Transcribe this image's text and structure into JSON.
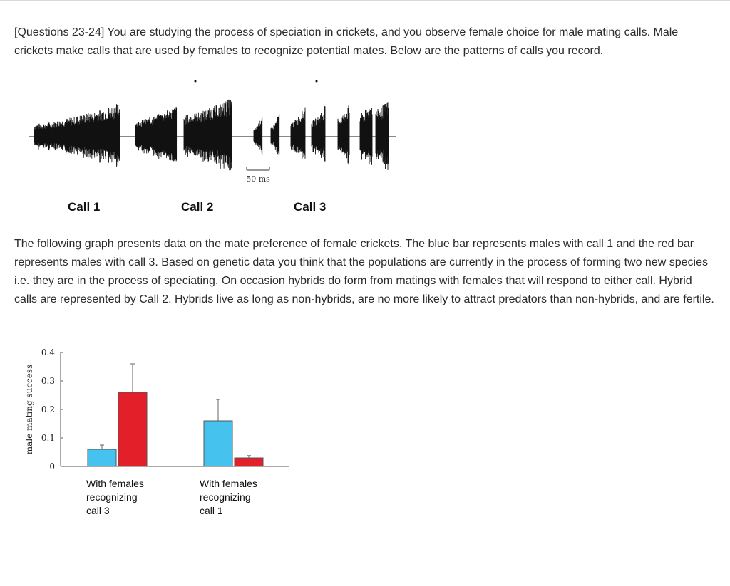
{
  "intro_text": "[Questions 23-24] You are studying the process of speciation in crickets, and you observe female choice for male mating calls. Male crickets make calls that are used by females to recognize potential mates. Below are the patterns of calls you record.",
  "waveform": {
    "scale_label": "50 ms",
    "calls": [
      "Call 1",
      "Call 2",
      "Call 3"
    ]
  },
  "description_text": "The following graph presents data on the mate preference of female crickets. The blue bar represents males with call 1 and the red bar represents males with call 3. Based on genetic data you think that the populations are currently in the process of forming two new species i.e. they are in the process of speciating. On occasion hybrids do form from matings with females that will respond to either call. Hybrid calls are represented by Call 2. Hybrids live as long as non-hybrids, are no more likely to attract predators than non-hybrids, and are fertile.",
  "colors": {
    "blue": "#45c3ee",
    "red": "#e3202a"
  },
  "chart_data": {
    "type": "bar",
    "categories": [
      "With females recognizing call 3",
      "With females recognizing call 1"
    ],
    "category_lines": [
      [
        "With females",
        "recognizing",
        "call 3"
      ],
      [
        "With females",
        "recognizing",
        "call 1"
      ]
    ],
    "series": [
      {
        "color": "blue",
        "values": [
          0.06,
          0.16
        ],
        "errors": [
          0.015,
          0.075
        ]
      },
      {
        "color": "red",
        "values": [
          0.26,
          0.03
        ],
        "errors": [
          0.1,
          0.008
        ]
      }
    ],
    "ylabel": "male mating success",
    "ylim": [
      0,
      0.4
    ],
    "yticks": [
      "0",
      "0.1",
      "0.2",
      "0.3",
      "0.4"
    ],
    "ytick_values": [
      0,
      0.1,
      0.2,
      0.3,
      0.4
    ]
  }
}
